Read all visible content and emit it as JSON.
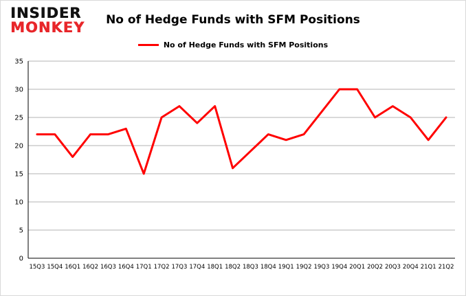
{
  "logo": {
    "line1": "INSIDER",
    "line2": "MONKEY"
  },
  "header": {
    "title": "No of Hedge Funds with SFM Positions"
  },
  "legend": {
    "label": "No of Hedge Funds with SFM Positions",
    "color": "#ff0000"
  },
  "chart_data": {
    "type": "line",
    "title": "No of Hedge Funds with SFM Positions",
    "categories": [
      "15Q3",
      "15Q4",
      "16Q1",
      "16Q2",
      "16Q3",
      "16Q4",
      "17Q1",
      "17Q2",
      "17Q3",
      "17Q4",
      "18Q1",
      "18Q2",
      "18Q3",
      "18Q4",
      "19Q1",
      "19Q2",
      "19Q3",
      "19Q4",
      "20Q1",
      "20Q2",
      "20Q3",
      "20Q4",
      "21Q1",
      "21Q2"
    ],
    "values": [
      22,
      22,
      18,
      22,
      22,
      23,
      15,
      25,
      27,
      24,
      27,
      16,
      19,
      22,
      21,
      22,
      26,
      30,
      30,
      25,
      27,
      25,
      21,
      25
    ],
    "xlabel": "",
    "ylabel": "",
    "ylim": [
      0,
      35
    ],
    "yticks": [
      0,
      5,
      10,
      15,
      20,
      25,
      30,
      35
    ],
    "grid": true,
    "legend_position": "top",
    "line_color": "#ff0000",
    "gridline_color": "#b3b3b3",
    "axis_color": "#000000"
  }
}
